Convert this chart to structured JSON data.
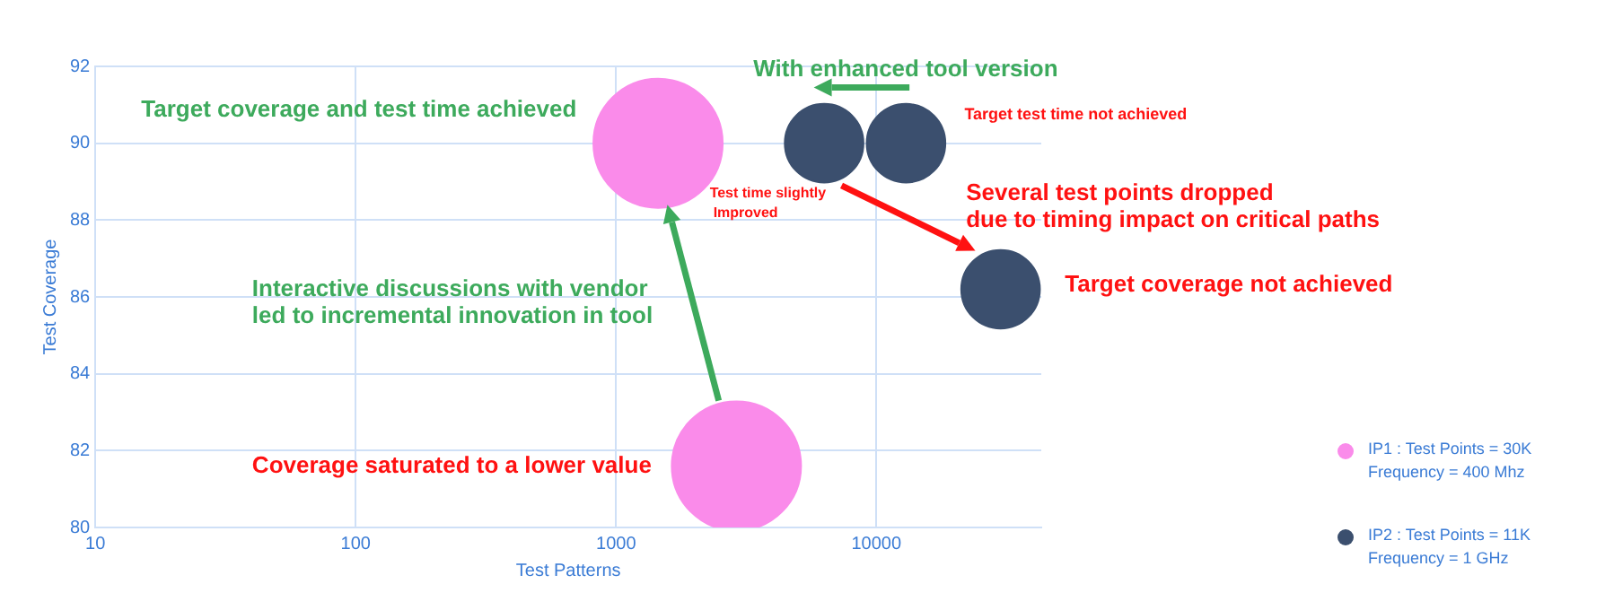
{
  "chart_data": {
    "type": "bubble",
    "xlabel": "Test Patterns",
    "ylabel": "Test Coverage",
    "log": "x",
    "xlim": [
      10,
      43000
    ],
    "xticks": [
      10,
      100,
      1000,
      10000
    ],
    "ylim": [
      80,
      92
    ],
    "yticks": [
      80,
      82,
      84,
      86,
      88,
      90,
      92
    ],
    "grid": true,
    "legend": "bottom right",
    "series": [
      {
        "name": "IP1  : Test Points = 30K\nFrequency = 400 Mhz",
        "color": "#fa8bea",
        "x": [
          1450,
          2900
        ],
        "values": [
          90,
          81.6
        ],
        "sizes": [
          1,
          1
        ]
      },
      {
        "name": "IP2  : Test Points = 11K\nFrequency = 1 GHz",
        "color": "#3b4f6e",
        "x": [
          6300,
          13000,
          30000
        ],
        "values": [
          90,
          90,
          86.2
        ],
        "sizes": [
          0.37,
          0.37,
          0.37
        ]
      }
    ],
    "annotations": [
      "Target coverage and test time achieved",
      "With enhanced tool version",
      "Target test time not achieved",
      "Test time slightly\nImproved",
      {
        "text": "Several test points dropped\ndue to timing impact on critical paths",
        "x": 30000,
        "y": 86.2
      },
      "Target coverage not achieved",
      "Interactive discussions with vendor\nled to incremental innovation in tool",
      "Coverage saturated to a lower value"
    ]
  }
}
